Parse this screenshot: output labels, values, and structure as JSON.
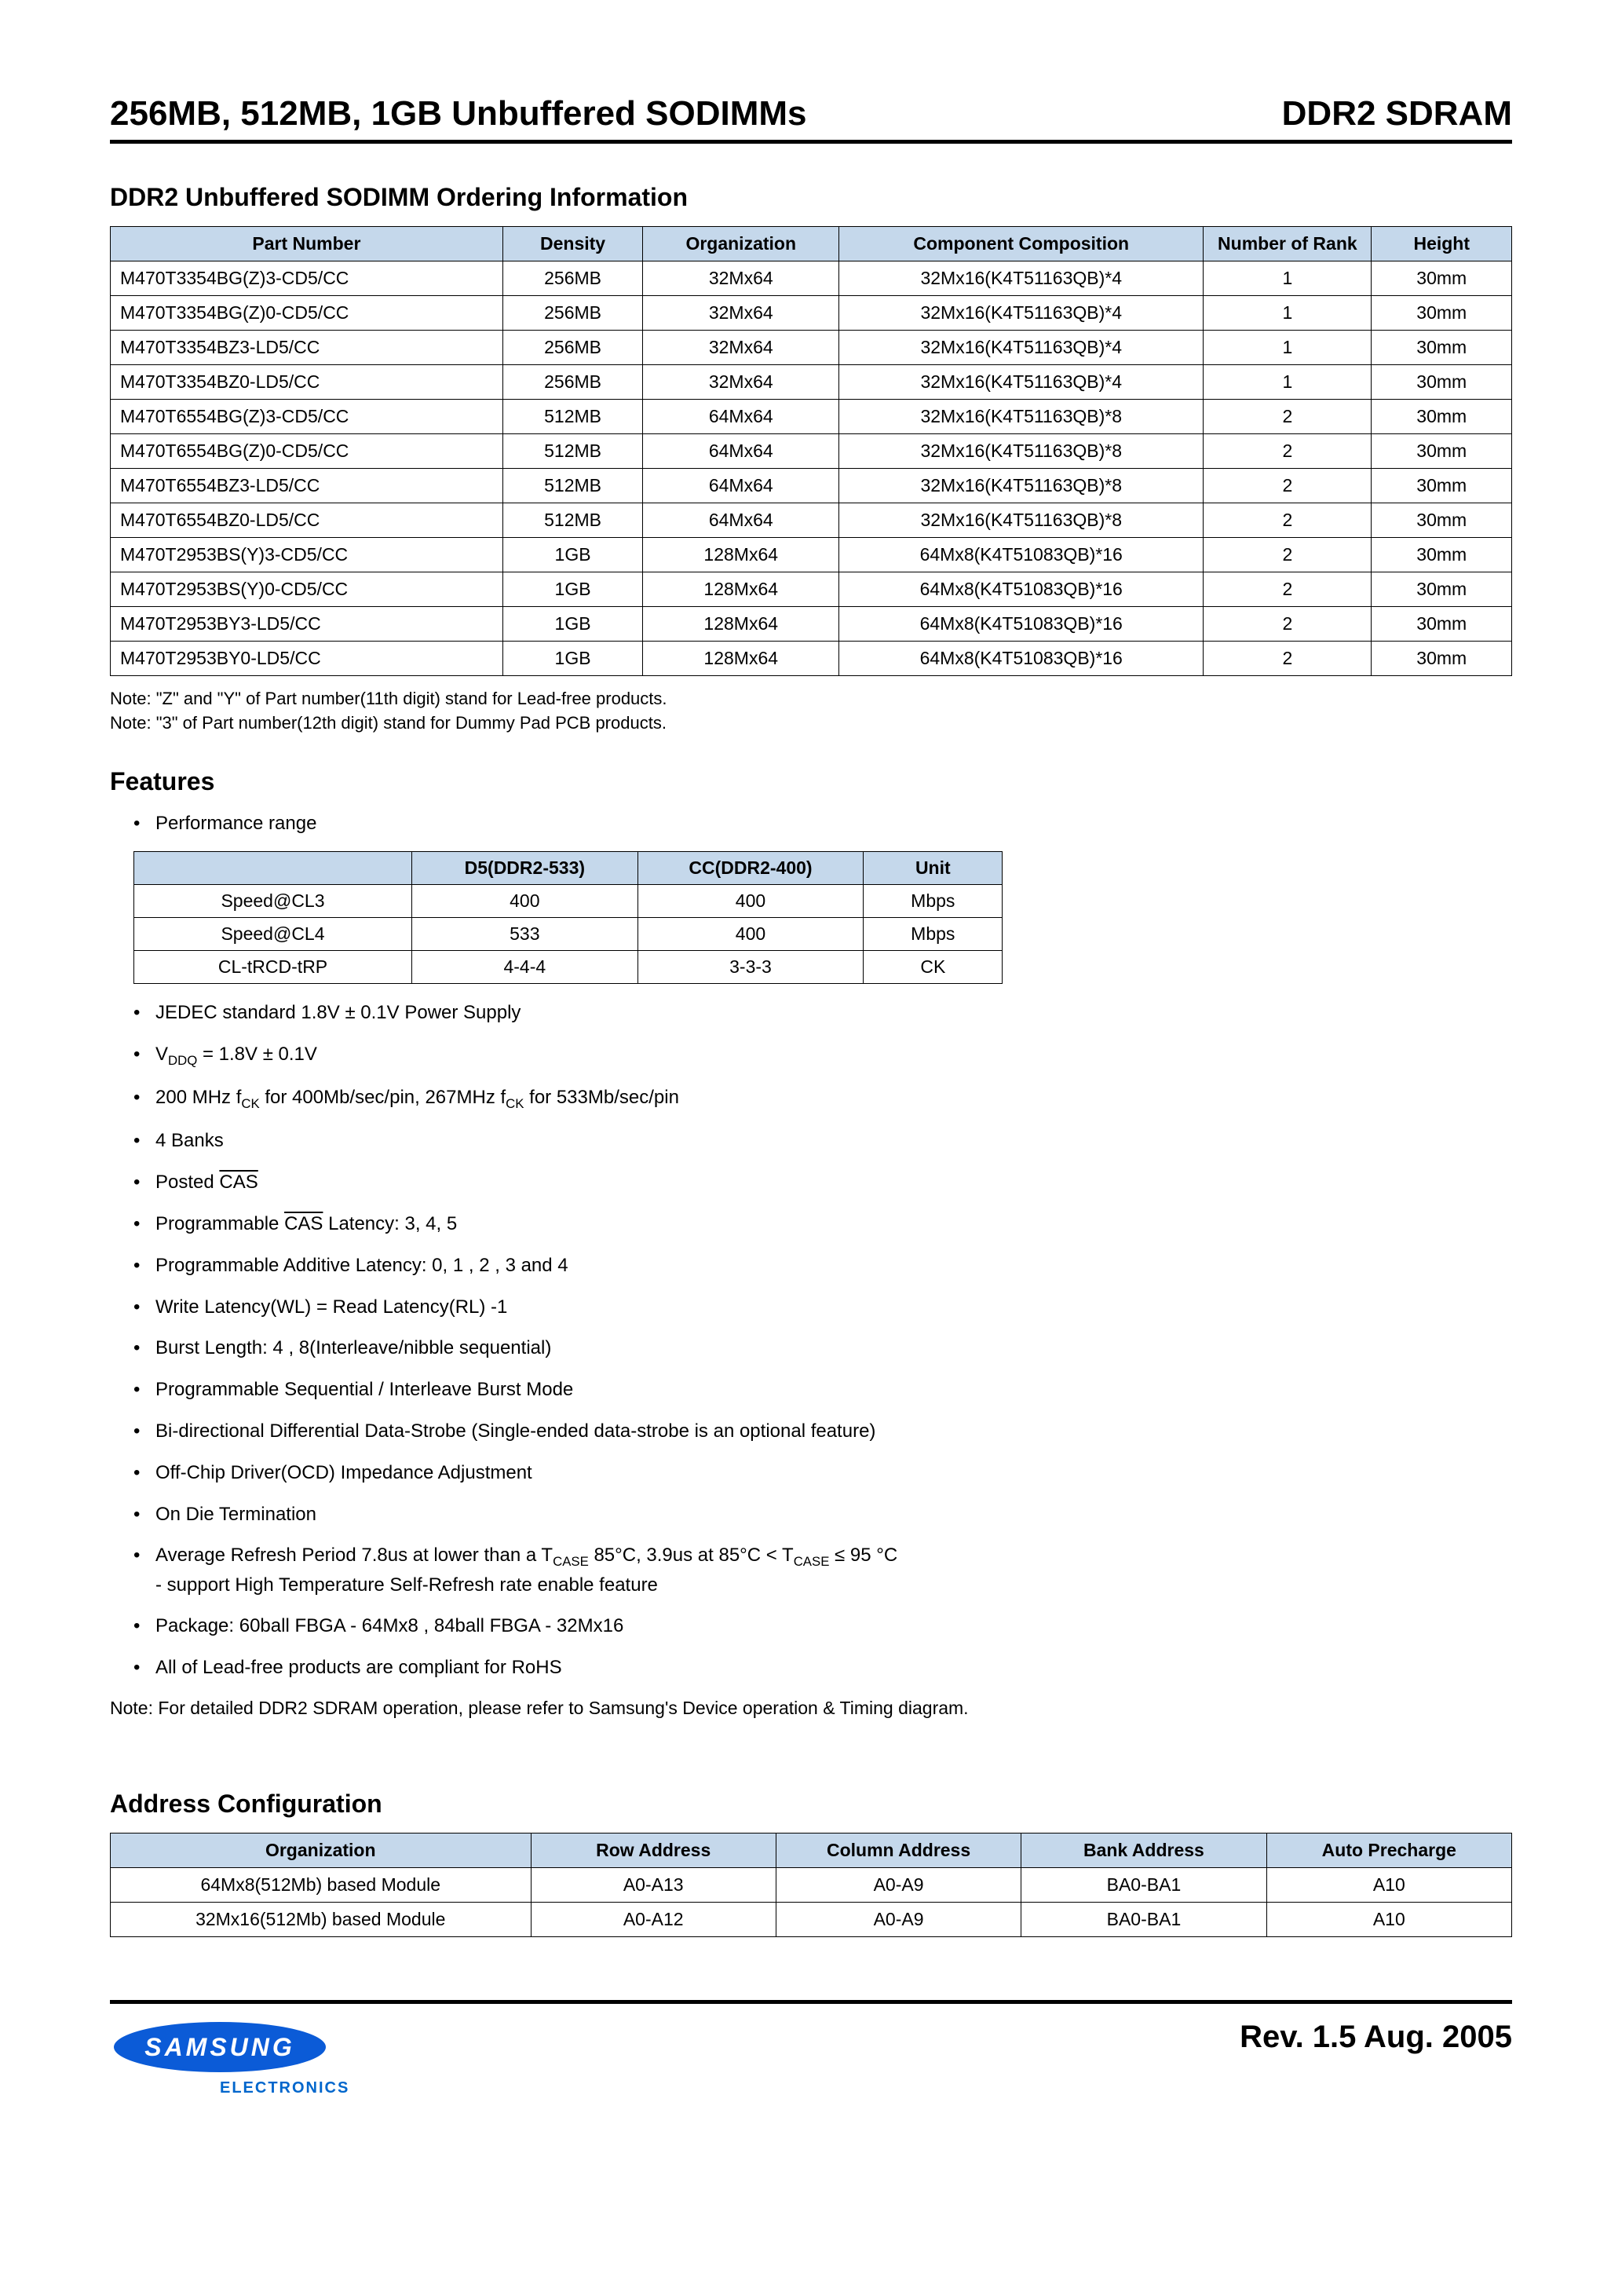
{
  "header": {
    "left": "256MB, 512MB, 1GB Unbuffered SODIMMs",
    "right": "DDR2 SDRAM"
  },
  "ordering": {
    "title": "DDR2 Unbuffered SODIMM Ordering Information",
    "columns": [
      "Part Number",
      "Density",
      "Organization",
      "Component Composition",
      "Number of Rank",
      "Height"
    ],
    "col_widths": [
      "28%",
      "10%",
      "14%",
      "26%",
      "12%",
      "10%"
    ],
    "header_bg": "#c5d8eb",
    "rows": [
      [
        "M470T3354BG(Z)3-CD5/CC",
        "256MB",
        "32Mx64",
        "32Mx16(K4T51163QB)*4",
        "1",
        "30mm"
      ],
      [
        "M470T3354BG(Z)0-CD5/CC",
        "256MB",
        "32Mx64",
        "32Mx16(K4T51163QB)*4",
        "1",
        "30mm"
      ],
      [
        "M470T3354BZ3-LD5/CC",
        "256MB",
        "32Mx64",
        "32Mx16(K4T51163QB)*4",
        "1",
        "30mm"
      ],
      [
        "M470T3354BZ0-LD5/CC",
        "256MB",
        "32Mx64",
        "32Mx16(K4T51163QB)*4",
        "1",
        "30mm"
      ],
      [
        "M470T6554BG(Z)3-CD5/CC",
        "512MB",
        "64Mx64",
        "32Mx16(K4T51163QB)*8",
        "2",
        "30mm"
      ],
      [
        "M470T6554BG(Z)0-CD5/CC",
        "512MB",
        "64Mx64",
        "32Mx16(K4T51163QB)*8",
        "2",
        "30mm"
      ],
      [
        "M470T6554BZ3-LD5/CC",
        "512MB",
        "64Mx64",
        "32Mx16(K4T51163QB)*8",
        "2",
        "30mm"
      ],
      [
        "M470T6554BZ0-LD5/CC",
        "512MB",
        "64Mx64",
        "32Mx16(K4T51163QB)*8",
        "2",
        "30mm"
      ],
      [
        "M470T2953BS(Y)3-CD5/CC",
        "1GB",
        "128Mx64",
        "64Mx8(K4T51083QB)*16",
        "2",
        "30mm"
      ],
      [
        "M470T2953BS(Y)0-CD5/CC",
        "1GB",
        "128Mx64",
        "64Mx8(K4T51083QB)*16",
        "2",
        "30mm"
      ],
      [
        "M470T2953BY3-LD5/CC",
        "1GB",
        "128Mx64",
        "64Mx8(K4T51083QB)*16",
        "2",
        "30mm"
      ],
      [
        "M470T2953BY0-LD5/CC",
        "1GB",
        "128Mx64",
        "64Mx8(K4T51083QB)*16",
        "2",
        "30mm"
      ]
    ],
    "note1": "Note: \"Z\" and \"Y\" of Part number(11th digit) stand for Lead-free products.",
    "note2": "Note: \"3\" of Part number(12th digit) stand for Dummy Pad PCB products."
  },
  "features": {
    "title": "Features",
    "perf_label": "Performance range",
    "perf_table": {
      "columns": [
        "",
        "D5(DDR2-533)",
        "CC(DDR2-400)",
        "Unit"
      ],
      "col_widths": [
        "32%",
        "26%",
        "26%",
        "16%"
      ],
      "rows": [
        [
          "Speed@CL3",
          "400",
          "400",
          "Mbps"
        ],
        [
          "Speed@CL4",
          "533",
          "400",
          "Mbps"
        ],
        [
          "CL-tRCD-tRP",
          "4-4-4",
          "3-3-3",
          "CK"
        ]
      ]
    },
    "items": [
      {
        "html": "JEDEC standard 1.8V ± 0.1V Power Supply"
      },
      {
        "html": "V<sub>DDQ</sub> = 1.8V ± 0.1V"
      },
      {
        "html": "200 MHz f<sub>CK</sub> for 400Mb/sec/pin, 267MHz f<sub>CK</sub> for 533Mb/sec/pin"
      },
      {
        "html": "4 Banks"
      },
      {
        "html": "Posted <span class=\"overline\">CAS</span>"
      },
      {
        "html": "Programmable <span class=\"overline\">CAS</span> Latency: 3, 4, 5"
      },
      {
        "html": "Programmable Additive Latency: 0, 1 , 2 , 3 and 4"
      },
      {
        "html": "Write Latency(WL) = Read Latency(RL) -1"
      },
      {
        "html": "Burst Length: 4 , 8(Interleave/nibble sequential)"
      },
      {
        "html": "Programmable Sequential / Interleave Burst Mode"
      },
      {
        "html": "Bi-directional Differential Data-Strobe (Single-ended data-strobe is an optional feature)"
      },
      {
        "html": "Off-Chip Driver(OCD) Impedance Adjustment"
      },
      {
        "html": "On Die Termination"
      },
      {
        "html": "Average Refresh Period 7.8us at lower than a T<sub>CASE</sub> 85°C, 3.9us at 85°C &lt; T<sub>CASE</sub> ≤ 95 °C<br><span>- support High Temperature Self-Refresh rate enable feature</span>"
      },
      {
        "html": "Package: 60ball FBGA - 64Mx8 , 84ball FBGA - 32Mx16"
      },
      {
        "html": "All of Lead-free products are compliant for RoHS"
      }
    ],
    "detail_note": "Note: For detailed DDR2 SDRAM operation, please refer to Samsung's Device operation & Timing diagram."
  },
  "address": {
    "title": "Address Configuration",
    "columns": [
      "Organization",
      "Row Address",
      "Column Address",
      "Bank Address",
      "Auto Precharge"
    ],
    "col_widths": [
      "30%",
      "17.5%",
      "17.5%",
      "17.5%",
      "17.5%"
    ],
    "rows": [
      [
        "64Mx8(512Mb) based Module",
        "A0-A13",
        "A0-A9",
        "BA0-BA1",
        "A10"
      ],
      [
        "32Mx16(512Mb) based Module",
        "A0-A12",
        "A0-A9",
        "BA0-BA1",
        "A10"
      ]
    ]
  },
  "footer": {
    "logo_text": "SAMSUNG",
    "electronics": "ELECTRONICS",
    "logo_fill": "#0b5bd7",
    "rev": "Rev. 1.5 Aug. 2005"
  }
}
